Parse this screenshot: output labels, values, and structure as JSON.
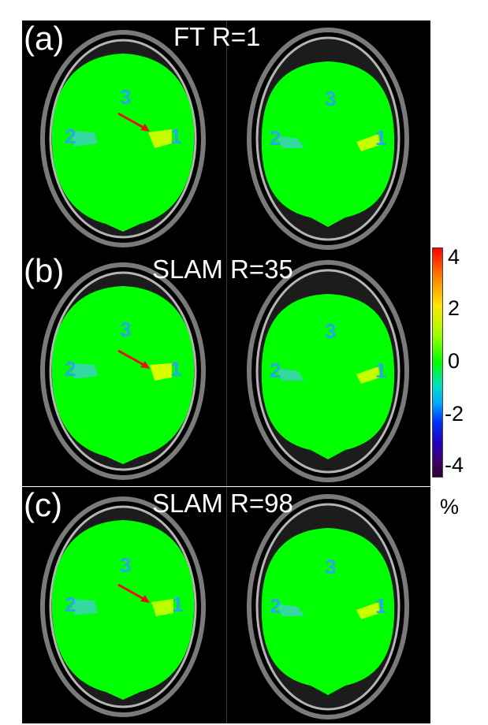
{
  "panels": [
    {
      "letter": "(a)",
      "title": "FT R=1"
    },
    {
      "letter": "(b)",
      "title": "SLAM R=35"
    },
    {
      "letter": "(c)",
      "title": "SLAM R=98"
    }
  ],
  "roi_labels": {
    "one": "1",
    "two": "2",
    "three": "3"
  },
  "colorbar": {
    "ticks": [
      "4",
      "2",
      "0",
      "-2",
      "-4"
    ],
    "unit": "%",
    "colors": [
      "#ff0000",
      "#ffe600",
      "#00ff00",
      "#00a8ff",
      "#0030ff",
      "#2b0030"
    ]
  },
  "colors": {
    "brain_fill": "#00ff00",
    "roi1": "#c8ff00",
    "roi2": "#34d9a0",
    "arrow": "#e81010",
    "roi_label": "#2aa7e6"
  }
}
